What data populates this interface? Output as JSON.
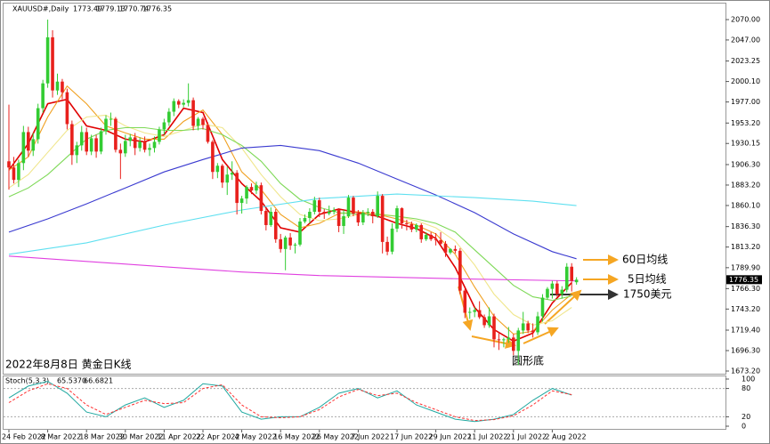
{
  "chart_data": [
    {
      "type": "candlestick",
      "title": "XAUUSD#,Daily",
      "caption": "2022年8月8日 黄金日K线",
      "annotations": [
        "60日均线",
        "5日均线",
        "1750美元",
        "圆形底"
      ],
      "up_color": "#33cc33",
      "down_color": "#e8201c",
      "categories": [
        "24 Feb 2022",
        null,
        null,
        null,
        null,
        null,
        null,
        null,
        "8 Mar 2022",
        null,
        null,
        null,
        null,
        null,
        null,
        null,
        "18 Mar 2022",
        null,
        null,
        null,
        null,
        null,
        null,
        null,
        "30 Mar 2022",
        null,
        null,
        null,
        null,
        null,
        null,
        null,
        "11 Apr 2022",
        null,
        null,
        null,
        null,
        null,
        null,
        null,
        "22 Apr 2022",
        null,
        null,
        null,
        null,
        null,
        null,
        null,
        "4 May 2022",
        null,
        null,
        null,
        null,
        null,
        null,
        null,
        "16 May 2022",
        null,
        null,
        null,
        null,
        null,
        null,
        null,
        "26 May 2022",
        null,
        null,
        null,
        null,
        null,
        null,
        null,
        "7 Jun 2022",
        null,
        null,
        null,
        null,
        null,
        null,
        null,
        "17 Jun 2022",
        null,
        null,
        null,
        null,
        null,
        null,
        null,
        "29 Jun 2022",
        null,
        null,
        null,
        null,
        null,
        null,
        null,
        "11 Jul 2022",
        null,
        null,
        null,
        null,
        null,
        null,
        null,
        "21 Jul 2022",
        null,
        null,
        null,
        null,
        null,
        null,
        null,
        "2 Aug 2022",
        null,
        null,
        null,
        null,
        null
      ],
      "open": [
        1910,
        1903,
        1889,
        1908,
        1943,
        1922,
        1935,
        1970,
        1998,
        2050,
        1990,
        2000,
        1988,
        1952,
        1917,
        1928,
        1943,
        1921,
        1936,
        1921,
        1944,
        1958,
        1958,
        1923,
        1919,
        1933,
        1937,
        1925,
        1932,
        1923,
        1925,
        1932,
        1946,
        1954,
        1966,
        1978,
        1974,
        1976,
        1979,
        1950,
        1958,
        1951,
        1932,
        1898,
        1905,
        1886,
        1895,
        1897,
        1863,
        1868,
        1881,
        1877,
        1883,
        1854,
        1838,
        1853,
        1822,
        1811,
        1824,
        1815,
        1816,
        1842,
        1846,
        1853,
        1866,
        1853,
        1851,
        1853,
        1855,
        1837,
        1848,
        1869,
        1851,
        1841,
        1852,
        1853,
        1848,
        1871,
        1819,
        1808,
        1834,
        1857,
        1840,
        1839,
        1833,
        1838,
        1822,
        1827,
        1822,
        1821,
        1817,
        1807,
        1811,
        1809,
        1764,
        1739,
        1740,
        1742,
        1734,
        1725,
        1735,
        1709,
        1708,
        1709,
        1711,
        1696,
        1719,
        1727,
        1719,
        1717,
        1735,
        1756,
        1766,
        1772,
        1760,
        1765,
        1791,
        1773.49
      ],
      "high": [
        1974,
        1915,
        1912,
        1950,
        1949,
        1942,
        1975,
        2002,
        2070,
        2058,
        2009,
        2003,
        1992,
        1956,
        1932,
        1950,
        1948,
        1940,
        1940,
        1948,
        1962,
        1965,
        1960,
        1930,
        1940,
        1941,
        1942,
        1937,
        1938,
        1930,
        1938,
        1949,
        1958,
        1970,
        1981,
        1980,
        1980,
        1998,
        1982,
        1960,
        1960,
        1954,
        1934,
        1908,
        1907,
        1904,
        1910,
        1900,
        1871,
        1883,
        1885,
        1887,
        1886,
        1858,
        1858,
        1856,
        1828,
        1826,
        1829,
        1818,
        1846,
        1850,
        1857,
        1870,
        1869,
        1856,
        1860,
        1858,
        1857,
        1855,
        1872,
        1871,
        1855,
        1855,
        1857,
        1856,
        1876,
        1873,
        1825,
        1840,
        1860,
        1858,
        1844,
        1842,
        1840,
        1840,
        1830,
        1830,
        1829,
        1830,
        1820,
        1812,
        1815,
        1812,
        1766,
        1745,
        1745,
        1752,
        1737,
        1745,
        1738,
        1717,
        1711,
        1723,
        1715,
        1722,
        1740,
        1730,
        1727,
        1740,
        1760,
        1768,
        1775,
        1775,
        1769,
        1795,
        1795,
        1779.13
      ],
      "low": [
        1878,
        1885,
        1881,
        1900,
        1915,
        1916,
        1930,
        1965,
        1993,
        1982,
        1985,
        1980,
        1946,
        1906,
        1908,
        1922,
        1917,
        1917,
        1914,
        1918,
        1940,
        1950,
        1920,
        1890,
        1915,
        1927,
        1917,
        1921,
        1920,
        1916,
        1920,
        1929,
        1940,
        1950,
        1961,
        1970,
        1971,
        1972,
        1945,
        1945,
        1946,
        1930,
        1890,
        1891,
        1880,
        1872,
        1889,
        1850,
        1851,
        1862,
        1873,
        1873,
        1850,
        1832,
        1836,
        1818,
        1807,
        1787,
        1810,
        1806,
        1814,
        1840,
        1840,
        1850,
        1847,
        1845,
        1849,
        1850,
        1830,
        1828,
        1846,
        1848,
        1837,
        1838,
        1848,
        1840,
        1846,
        1806,
        1804,
        1805,
        1830,
        1834,
        1832,
        1830,
        1830,
        1818,
        1820,
        1820,
        1815,
        1815,
        1802,
        1805,
        1806,
        1760,
        1733,
        1732,
        1734,
        1732,
        1722,
        1722,
        1700,
        1697,
        1700,
        1705,
        1691,
        1680,
        1715,
        1716,
        1711,
        1714,
        1729,
        1754,
        1755,
        1757,
        1755,
        1762,
        1763,
        1770.74
      ],
      "close": [
        1903,
        1889,
        1908,
        1943,
        1922,
        1935,
        1970,
        1998,
        2050,
        1990,
        2000,
        1988,
        1952,
        1917,
        1928,
        1943,
        1921,
        1936,
        1921,
        1944,
        1958,
        1958,
        1923,
        1919,
        1933,
        1937,
        1925,
        1932,
        1923,
        1925,
        1932,
        1946,
        1954,
        1966,
        1978,
        1974,
        1976,
        1979,
        1950,
        1958,
        1951,
        1932,
        1898,
        1905,
        1886,
        1895,
        1897,
        1863,
        1868,
        1881,
        1877,
        1883,
        1854,
        1838,
        1853,
        1822,
        1811,
        1824,
        1815,
        1816,
        1842,
        1846,
        1853,
        1866,
        1853,
        1851,
        1853,
        1855,
        1837,
        1848,
        1869,
        1851,
        1841,
        1852,
        1853,
        1848,
        1871,
        1819,
        1808,
        1834,
        1857,
        1840,
        1839,
        1833,
        1838,
        1822,
        1827,
        1822,
        1821,
        1817,
        1807,
        1811,
        1809,
        1764,
        1739,
        1740,
        1742,
        1734,
        1725,
        1735,
        1709,
        1708,
        1709,
        1711,
        1696,
        1719,
        1727,
        1719,
        1717,
        1735,
        1756,
        1766,
        1772,
        1760,
        1765,
        1791,
        1775,
        1776.35
      ],
      "moving_averages": [
        {
          "color": "#e00000",
          "x": [
            0,
            4,
            8,
            12,
            16,
            20,
            24,
            28,
            32,
            36,
            40,
            44,
            48,
            52,
            56,
            60,
            64,
            68,
            72,
            76,
            80,
            84,
            88,
            92,
            96,
            100,
            104,
            108,
            112,
            116
          ],
          "values": [
            1900,
            1930,
            1975,
            1980,
            1950,
            1945,
            1935,
            1932,
            1940,
            1970,
            1965,
            1912,
            1885,
            1865,
            1835,
            1830,
            1850,
            1856,
            1852,
            1848,
            1840,
            1834,
            1823,
            1790,
            1745,
            1720,
            1707,
            1716,
            1750,
            1773
          ]
        },
        {
          "color": "#f0a020",
          "x": [
            0,
            4,
            8,
            12,
            16,
            20,
            24,
            28,
            32,
            36,
            40,
            44,
            48,
            52,
            56,
            60,
            64,
            68,
            72,
            76,
            80,
            84,
            88,
            92,
            96,
            100,
            104,
            108,
            112,
            116
          ],
          "values": [
            1900,
            1915,
            1960,
            1995,
            1975,
            1950,
            1942,
            1935,
            1935,
            1955,
            1968,
            1940,
            1898,
            1878,
            1850,
            1835,
            1840,
            1851,
            1853,
            1850,
            1845,
            1838,
            1828,
            1805,
            1768,
            1735,
            1715,
            1718,
            1742,
            1760
          ]
        },
        {
          "color": "#f0e68c",
          "x": [
            0,
            4,
            8,
            12,
            16,
            20,
            24,
            28,
            32,
            36,
            40,
            44,
            48,
            52,
            56,
            60,
            64,
            68,
            72,
            76,
            80,
            84,
            88,
            92,
            96,
            100,
            104,
            108,
            112,
            116
          ],
          "values": [
            1880,
            1895,
            1920,
            1945,
            1960,
            1962,
            1950,
            1942,
            1938,
            1945,
            1952,
            1948,
            1925,
            1895,
            1870,
            1850,
            1843,
            1845,
            1850,
            1851,
            1848,
            1843,
            1835,
            1820,
            1793,
            1760,
            1737,
            1725,
            1730,
            1745
          ]
        },
        {
          "color": "#7ed957",
          "x": [
            0,
            4,
            8,
            12,
            16,
            20,
            24,
            28,
            32,
            36,
            40,
            44,
            48,
            52,
            56,
            60,
            64,
            68,
            72,
            76,
            80,
            84,
            88,
            92,
            96,
            100,
            104,
            108,
            112,
            116
          ],
          "values": [
            1870,
            1880,
            1895,
            1915,
            1935,
            1945,
            1948,
            1948,
            1945,
            1945,
            1947,
            1940,
            1928,
            1910,
            1885,
            1867,
            1858,
            1852,
            1850,
            1850,
            1848,
            1845,
            1840,
            1830,
            1810,
            1790,
            1770,
            1757,
            1753,
            1758
          ]
        },
        {
          "color": "#3a3ad0",
          "x": [
            0,
            8,
            16,
            24,
            32,
            40,
            48,
            56,
            64,
            72,
            80,
            88,
            96,
            104,
            112,
            117
          ],
          "values": [
            1830,
            1845,
            1862,
            1880,
            1898,
            1912,
            1925,
            1928,
            1922,
            1908,
            1890,
            1872,
            1852,
            1828,
            1808,
            1800
          ]
        },
        {
          "color": "#5fe0f0",
          "x": [
            0,
            16,
            32,
            48,
            64,
            80,
            96,
            108,
            117
          ],
          "values": [
            1805,
            1818,
            1838,
            1855,
            1868,
            1873,
            1869,
            1865,
            1860
          ]
        },
        {
          "color": "#e040e0",
          "x": [
            0,
            16,
            32,
            48,
            64,
            80,
            96,
            117
          ],
          "values": [
            1803,
            1797,
            1791,
            1785,
            1781,
            1779,
            1777,
            1775
          ]
        }
      ],
      "ylim": [
        1670.2,
        2087.1
      ],
      "yticks": [
        {
          "value": 2070,
          "label": "2070.00"
        },
        {
          "value": 2047,
          "label": "2047.00"
        },
        2023.25,
        {
          "value": 2000.1,
          "label": "2000.10"
        },
        {
          "value": 1977,
          "label": "1977.00"
        },
        {
          "value": 1953.2,
          "label": "1953.20"
        },
        1930.15,
        {
          "value": 1906.3,
          "label": "1906.30"
        },
        {
          "value": 1883.2,
          "label": "1883.20"
        },
        {
          "value": 1860.1,
          "label": "1860.10"
        },
        {
          "value": 1836.3,
          "label": "1836.30"
        },
        {
          "value": 1813.2,
          "label": "1813.20"
        },
        {
          "value": 1789.9,
          "label": "1789.90"
        },
        {
          "value": 1766.3,
          "label": "1766.30"
        },
        {
          "value": 1743.2,
          "label": "1743.20"
        },
        {
          "value": 1719.4,
          "label": "1719.40"
        },
        {
          "value": 1696.3,
          "label": "1696.30"
        },
        {
          "value": 1673.2,
          "label": "1673.20"
        }
      ]
    },
    {
      "type": "line",
      "title": "Stoch(5,3,3)",
      "readout": [
        {
          "value": 65.537,
          "label": "65.5370"
        },
        {
          "value": 66.6821,
          "label": "66.6821"
        }
      ],
      "x": [
        0,
        4,
        8,
        12,
        16,
        20,
        24,
        28,
        32,
        36,
        40,
        44,
        48,
        52,
        56,
        60,
        64,
        68,
        72,
        76,
        80,
        84,
        88,
        92,
        96,
        100,
        104,
        108,
        112,
        116
      ],
      "series": [
        {
          "color": "#20a8a0",
          "values": [
            60,
            85,
            95,
            70,
            30,
            20,
            45,
            60,
            40,
            55,
            90,
            85,
            30,
            15,
            20,
            20,
            40,
            70,
            80,
            60,
            75,
            45,
            30,
            15,
            10,
            15,
            25,
            55,
            80,
            66
          ]
        },
        {
          "color": "#ff3030",
          "dashed": true,
          "values": [
            50,
            75,
            90,
            80,
            45,
            25,
            40,
            55,
            48,
            50,
            80,
            88,
            45,
            20,
            18,
            20,
            35,
            62,
            78,
            65,
            70,
            50,
            35,
            20,
            12,
            14,
            22,
            45,
            75,
            67
          ]
        }
      ],
      "ylim": [
        0,
        100
      ],
      "yticks": [
        0,
        20,
        80,
        100
      ]
    }
  ]
}
